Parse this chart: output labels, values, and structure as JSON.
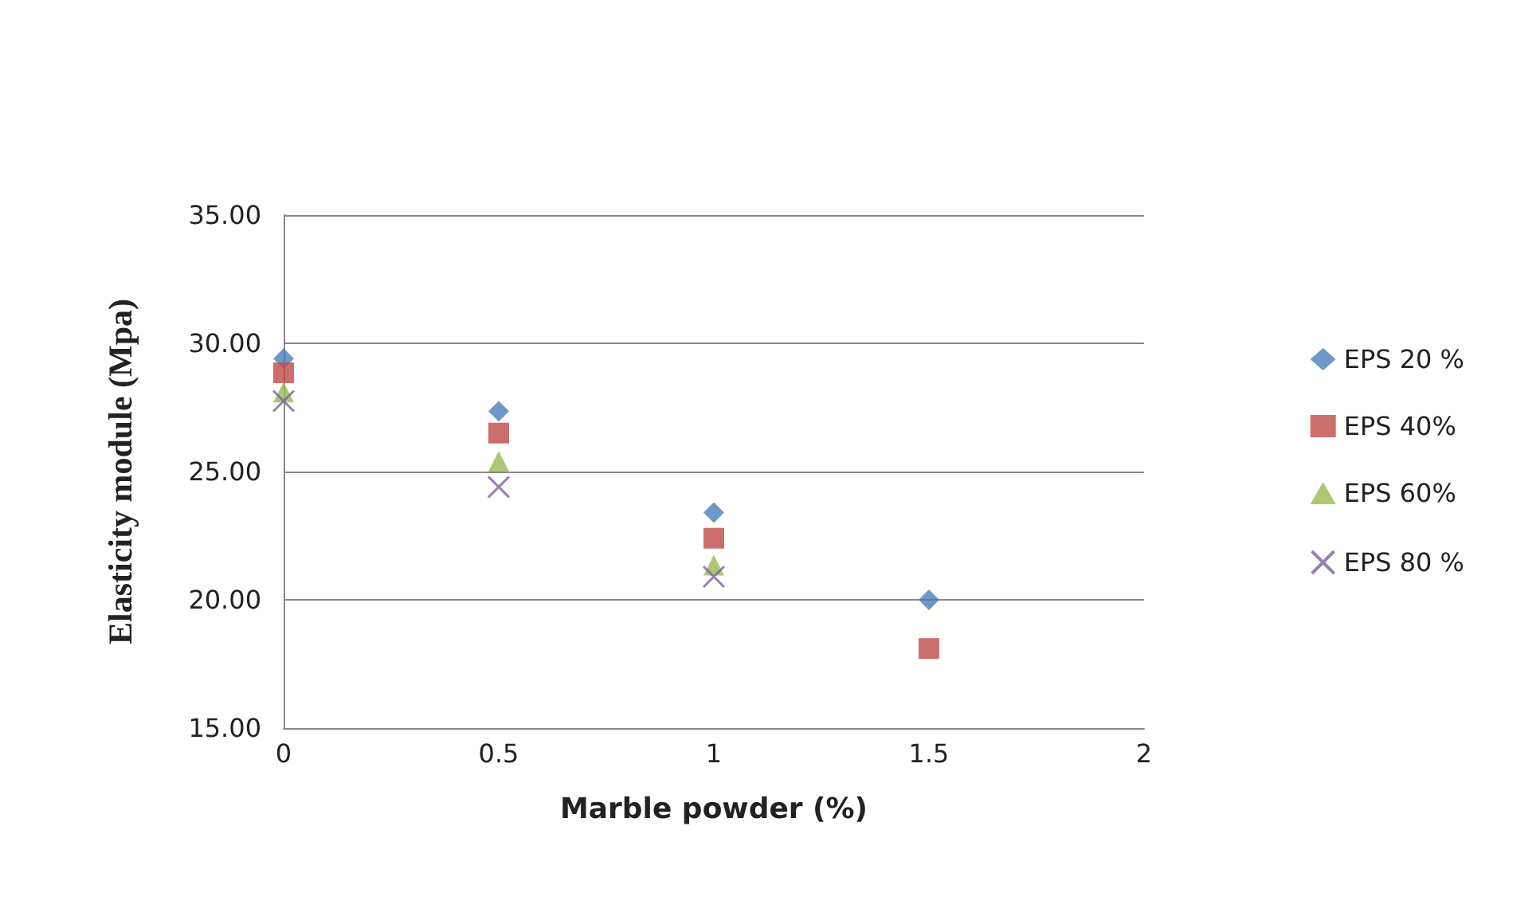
{
  "chart_data": {
    "type": "scatter",
    "xlabel": "Marble powder (%)",
    "ylabel": "Elasticity module (Mpa)",
    "x": [
      0,
      0.5,
      1,
      1.5
    ],
    "series": [
      {
        "name": "EPS 20 %",
        "color": "#4a7ebb",
        "marker": "diamond",
        "values": [
          29.4,
          27.35,
          23.4,
          20.0
        ]
      },
      {
        "name": "EPS 40%",
        "color": "#be4b48",
        "marker": "square",
        "values": [
          28.85,
          26.5,
          22.4,
          18.1
        ]
      },
      {
        "name": "EPS 60%",
        "color": "#98b954",
        "marker": "triangle",
        "values": [
          28.1,
          25.4,
          21.35,
          null
        ]
      },
      {
        "name": "EPS 80 %",
        "color": "#7d60a0",
        "marker": "cross",
        "values": [
          27.75,
          24.4,
          20.9,
          null
        ]
      }
    ],
    "xlim": [
      0,
      2
    ],
    "xticks": [
      0,
      0.5,
      1,
      1.5,
      2
    ],
    "ylim": [
      15,
      35
    ],
    "yticks": [
      {
        "value": 15,
        "label": "15.00"
      },
      {
        "value": 20,
        "label": "20.00"
      },
      {
        "value": 25,
        "label": "25.00"
      },
      {
        "value": 30,
        "label": "30.00"
      },
      {
        "value": 35,
        "label": "35.00"
      }
    ],
    "grid": "y",
    "legend": "right"
  }
}
